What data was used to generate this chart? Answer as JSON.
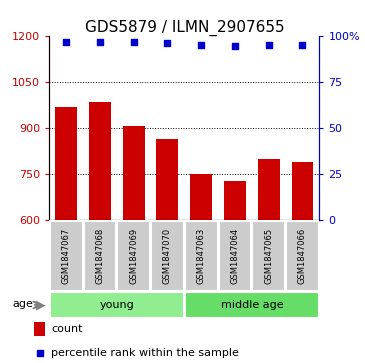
{
  "title": "GDS5879 / ILMN_2907655",
  "samples": [
    "GSM1847067",
    "GSM1847068",
    "GSM1847069",
    "GSM1847070",
    "GSM1847063",
    "GSM1847064",
    "GSM1847065",
    "GSM1847066"
  ],
  "bar_values": [
    970,
    985,
    905,
    865,
    748,
    725,
    800,
    790
  ],
  "percentile_values": [
    97,
    97,
    97,
    96.5,
    95.5,
    94.5,
    95.5,
    95.5
  ],
  "bar_color": "#cc0000",
  "dot_color": "#0000cc",
  "ylim_left": [
    600,
    1200
  ],
  "ylim_right": [
    0,
    100
  ],
  "yticks_left": [
    600,
    750,
    900,
    1050,
    1200
  ],
  "yticks_right": [
    0,
    25,
    50,
    75,
    100
  ],
  "ytick_labels_right": [
    "0",
    "25",
    "50",
    "75",
    "100%"
  ],
  "groups": [
    {
      "label": "young",
      "start": 0,
      "end": 3,
      "color": "#90ee90"
    },
    {
      "label": "middle age",
      "start": 4,
      "end": 7,
      "color": "#66dd66"
    }
  ],
  "age_label": "age",
  "legend_count_label": "count",
  "legend_pct_label": "percentile rank within the sample",
  "background_color": "#ffffff",
  "bar_bg_color": "#cccccc",
  "title_fontsize": 11,
  "tick_fontsize": 8,
  "sample_fontsize": 6,
  "group_fontsize": 8,
  "legend_fontsize": 8
}
